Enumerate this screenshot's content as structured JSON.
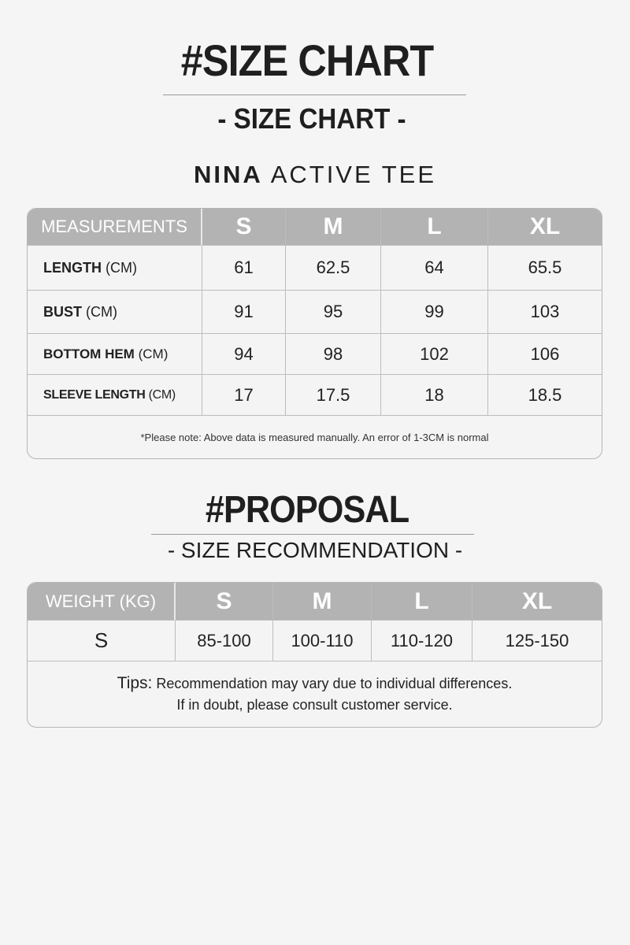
{
  "header": {
    "title": "#SIZE CHART",
    "subtitle": "- SIZE CHART -",
    "product_brand": "NINA",
    "product_name": "ACTIVE TEE"
  },
  "size_chart": {
    "corner": "MEASUREMENTS",
    "sizes": [
      "S",
      "M",
      "L",
      "XL"
    ],
    "rows": [
      {
        "name": "LENGTH",
        "unit": "(CM)",
        "values": [
          "61",
          "62.5",
          "64",
          "65.5"
        ]
      },
      {
        "name": "BUST",
        "unit": "(CM)",
        "values": [
          "91",
          "95",
          "99",
          "103"
        ]
      },
      {
        "name": "BOTTOM HEM",
        "unit": "(CM)",
        "values": [
          "94",
          "98",
          "102",
          "106"
        ]
      },
      {
        "name": "SLEEVE LENGTH",
        "unit": "(CM)",
        "values": [
          "17",
          "17.5",
          "18",
          "18.5"
        ]
      }
    ],
    "note": "*Please note: Above data is measured manually. An error of 1-3CM is normal"
  },
  "proposal": {
    "title": "#PROPOSAL",
    "subtitle": "- SIZE RECOMMENDATION -",
    "corner": "WEIGHT (KG)",
    "sizes": [
      "S",
      "M",
      "L",
      "XL"
    ],
    "row_label": "S",
    "values": [
      "85-100",
      "100-110",
      "110-120",
      "125-150"
    ],
    "tips_label": "Tips:",
    "tips_line1": "Recommendation may vary due to individual differences.",
    "tips_line2": "If in doubt, please consult customer service."
  },
  "colors": {
    "header_fill": "#b3b3b3",
    "background": "#f5f5f5",
    "border": "#bdbdbd"
  }
}
